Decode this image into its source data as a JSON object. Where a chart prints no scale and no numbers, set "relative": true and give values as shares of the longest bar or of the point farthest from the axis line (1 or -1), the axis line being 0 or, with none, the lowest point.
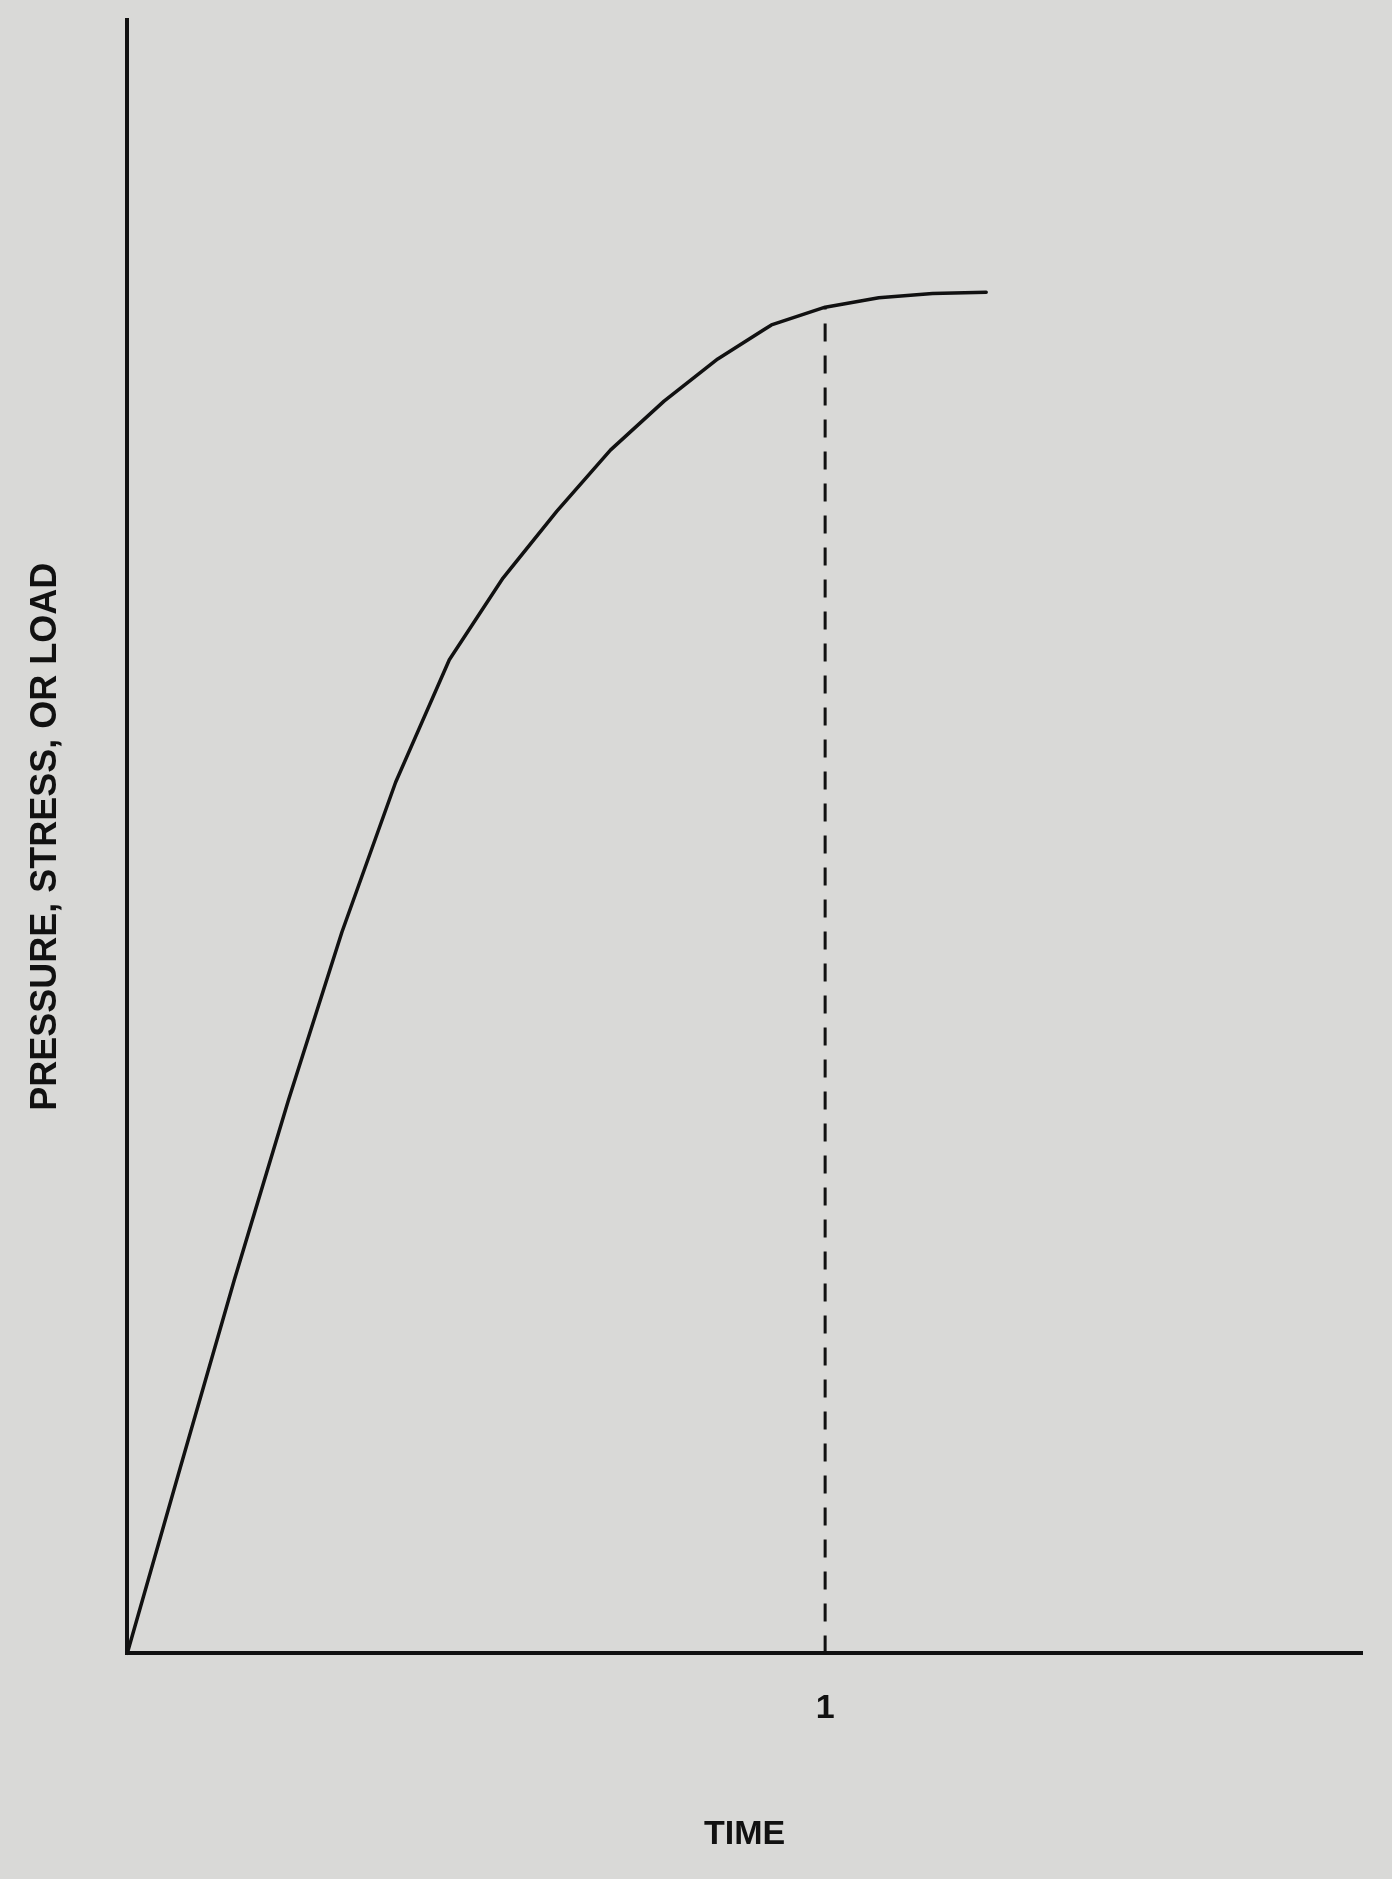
{
  "chart_data": {
    "type": "line",
    "relative": true,
    "xlabel": "TIME",
    "ylabel": "PRESSURE, STRESS, OR LOAD",
    "grid": false,
    "legend": false,
    "marker": "none",
    "line_style": "solid",
    "categories": [
      null,
      null,
      null,
      null,
      null,
      null,
      null,
      null,
      null,
      null,
      null,
      null,
      null,
      null,
      null,
      null,
      null,
      null,
      null,
      null,
      null,
      null,
      null,
      null
    ],
    "series": [
      {
        "color": "#111111",
        "values": [
          0,
          0.138,
          0.275,
          0.406,
          0.53,
          0.64,
          0.73,
          0.79,
          0.839,
          0.884,
          0.92,
          0.951,
          0.976,
          0.989,
          0.996,
          0.999,
          1,
          null,
          null,
          null,
          null,
          null,
          null,
          null
        ]
      }
    ],
    "annotations": [
      "1"
    ]
  }
}
